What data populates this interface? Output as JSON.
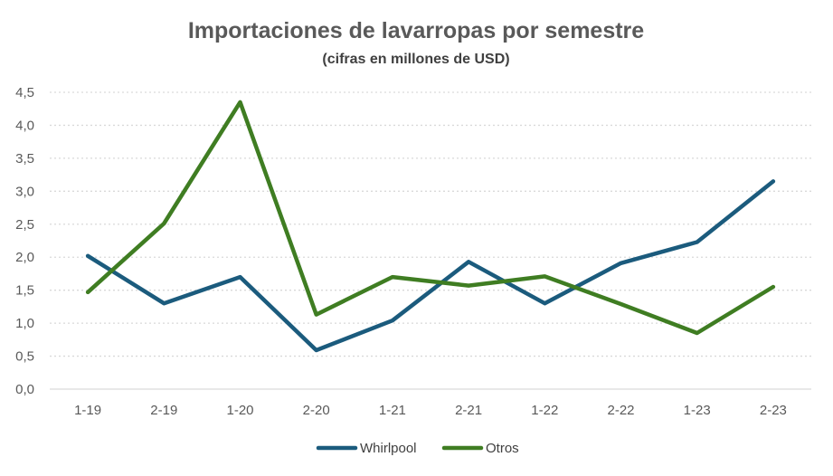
{
  "chart_data": {
    "type": "line",
    "title": "Importaciones de lavarropas por semestre",
    "subtitle": "(cifras en millones de USD)",
    "categories": [
      "1-19",
      "2-19",
      "1-20",
      "2-20",
      "1-21",
      "2-21",
      "1-22",
      "2-22",
      "1-23",
      "2-23"
    ],
    "ylim": [
      0,
      4.5
    ],
    "y_ticks": [
      "0,0",
      "0,5",
      "1,0",
      "1,5",
      "2,0",
      "2,5",
      "3,0",
      "3,5",
      "4,0",
      "4,5"
    ],
    "grid": true,
    "legend_position": "bottom",
    "series": [
      {
        "name": "Whirlpool",
        "color": "#1b5b7d",
        "values": [
          2.02,
          1.3,
          1.7,
          0.59,
          1.04,
          1.93,
          1.3,
          1.91,
          2.23,
          3.15
        ]
      },
      {
        "name": "Otros",
        "color": "#3f7d22",
        "values": [
          1.47,
          2.51,
          4.35,
          1.13,
          1.7,
          1.57,
          1.71,
          1.29,
          0.85,
          1.55
        ]
      }
    ]
  }
}
